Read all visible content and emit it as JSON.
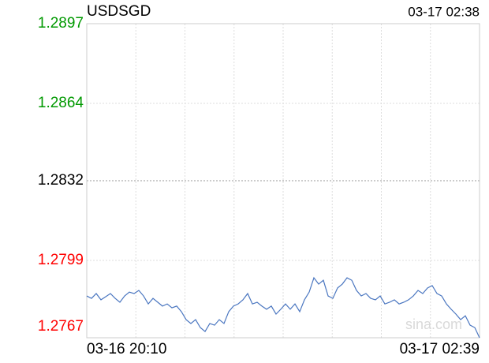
{
  "chart_data": {
    "type": "line",
    "title": "USDSGD",
    "timestamp": "03-17 02:38",
    "watermark": "sina.com",
    "categories": [
      "03-16 20:10",
      null,
      null,
      null,
      null,
      null,
      null,
      null,
      null,
      null,
      null,
      null,
      null,
      null,
      null,
      null,
      null,
      null,
      null,
      null,
      null,
      null,
      null,
      null,
      null,
      null,
      null,
      null,
      null,
      null,
      null,
      null,
      null,
      null,
      null,
      null,
      null,
      null,
      null,
      null,
      null,
      null,
      null,
      null,
      null,
      null,
      null,
      null,
      null,
      null,
      null,
      null,
      null,
      null,
      null,
      null,
      null,
      null,
      null,
      null,
      null,
      null,
      null,
      null,
      null,
      null,
      null,
      null,
      null,
      null,
      null,
      null,
      null,
      null,
      null,
      null,
      null,
      null,
      null,
      null,
      null,
      null,
      null,
      "03-17 02:39"
    ],
    "series": [
      {
        "name": "USDSGD",
        "color": "#4a76c0",
        "values": [
          1.27843,
          1.27833,
          1.27853,
          1.27827,
          1.2784,
          1.27853,
          1.27833,
          1.27817,
          1.27843,
          1.27859,
          1.27853,
          1.27866,
          1.27843,
          1.2781,
          1.27833,
          1.27817,
          1.27801,
          1.2781,
          1.27794,
          1.27801,
          1.27778,
          1.27745,
          1.27729,
          1.27745,
          1.27712,
          1.27696,
          1.27729,
          1.27722,
          1.27745,
          1.27729,
          1.27778,
          1.27801,
          1.2781,
          1.27827,
          1.27853,
          1.2781,
          1.27817,
          1.27801,
          1.27788,
          1.27801,
          1.27768,
          1.27788,
          1.2781,
          1.27788,
          1.2781,
          1.27778,
          1.27827,
          1.27859,
          1.27918,
          1.27892,
          1.27908,
          1.27843,
          1.27833,
          1.27876,
          1.27892,
          1.27918,
          1.27908,
          1.27866,
          1.27843,
          1.27853,
          1.27833,
          1.27827,
          1.27843,
          1.2781,
          1.27817,
          1.27827,
          1.2781,
          1.27817,
          1.27827,
          1.27843,
          1.27866,
          1.27853,
          1.27876,
          1.27886,
          1.27853,
          1.27843,
          1.2781,
          1.27788,
          1.27768,
          1.27745,
          1.27761,
          1.27722,
          1.27712,
          1.2767
        ]
      }
    ],
    "ylim": [
      1.2767,
      1.2897
    ],
    "yticks": [
      1.2897,
      1.2864,
      1.2832,
      1.2799,
      1.2767
    ],
    "ytick_colors": [
      "#009900",
      "#009900",
      "#000000",
      "#ff0000",
      "#ff0000"
    ],
    "grid": true
  }
}
